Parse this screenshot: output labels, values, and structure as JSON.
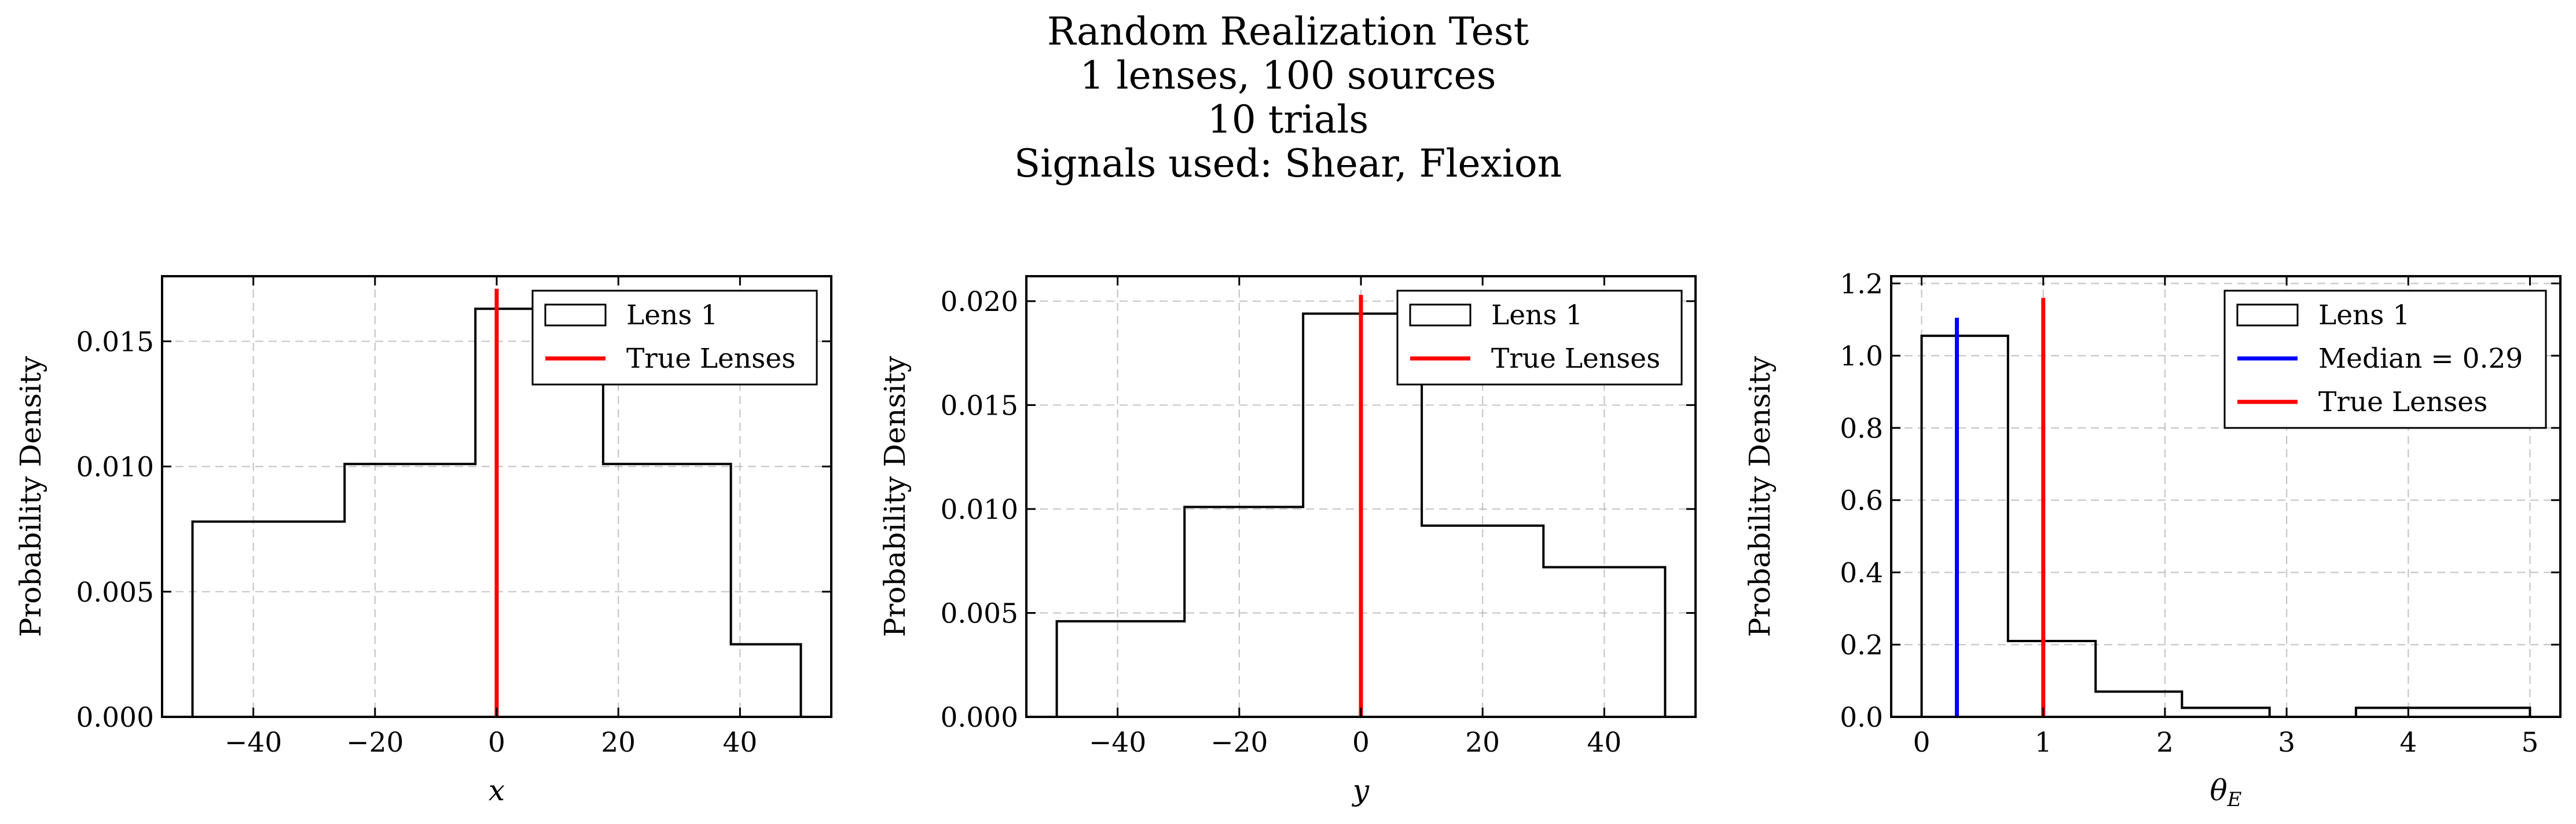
{
  "title_lines": [
    "Random Realization Test",
    "1 lenses, 100 sources",
    "10 trials",
    "Signals used: Shear, Flexion"
  ],
  "chart_data": [
    {
      "type": "histogram",
      "xlabel": "x",
      "ylabel": "Probability Density",
      "xlim": [
        -55,
        55
      ],
      "ylim": [
        0,
        0.0176
      ],
      "xticks": [
        -40,
        -20,
        0,
        20,
        40
      ],
      "xtick_labels": [
        "−40",
        "−20",
        "0",
        "20",
        "40"
      ],
      "yticks": [
        0,
        0.005,
        0.01,
        0.015
      ],
      "ytick_labels": [
        "0.000",
        "0.005",
        "0.010",
        "0.015"
      ],
      "grid": true,
      "legend_position": "top-right",
      "bins": [
        -50,
        -25,
        -3.5,
        17.5,
        38.5,
        50
      ],
      "density": [
        0.0078,
        0.0101,
        0.0163,
        0.0101,
        0.0029
      ],
      "legend": [
        {
          "label": "Lens 1",
          "kind": "box",
          "color": "#000000"
        },
        {
          "label": "True Lenses",
          "kind": "line",
          "color": "#ff0000"
        }
      ],
      "vlines": [
        {
          "x": 0,
          "ymax": 0.0171,
          "color": "#ff0000",
          "label": "True Lenses"
        }
      ]
    },
    {
      "type": "histogram",
      "xlabel": "y",
      "ylabel": "Probability Density",
      "xlim": [
        -55,
        55
      ],
      "ylim": [
        0,
        0.0212
      ],
      "xticks": [
        -40,
        -20,
        0,
        20,
        40
      ],
      "xtick_labels": [
        "−40",
        "−20",
        "0",
        "20",
        "40"
      ],
      "yticks": [
        0,
        0.005,
        0.01,
        0.015,
        0.02
      ],
      "ytick_labels": [
        "0.000",
        "0.005",
        "0.010",
        "0.015",
        "0.020"
      ],
      "grid": true,
      "legend_position": "top-right",
      "bins": [
        -50,
        -29,
        -9.5,
        10,
        30,
        50
      ],
      "density": [
        0.0046,
        0.0101,
        0.0194,
        0.0092,
        0.0072
      ],
      "legend": [
        {
          "label": "Lens 1",
          "kind": "box",
          "color": "#000000"
        },
        {
          "label": "True Lenses",
          "kind": "line",
          "color": "#ff0000"
        }
      ],
      "vlines": [
        {
          "x": 0,
          "ymax": 0.0203,
          "color": "#ff0000",
          "label": "True Lenses"
        }
      ]
    },
    {
      "type": "histogram",
      "xlabel": "θ_E",
      "ylabel": "Probability Density",
      "xlim": [
        -0.25,
        5.25
      ],
      "ylim": [
        0,
        1.22
      ],
      "xticks": [
        0,
        1,
        2,
        3,
        4,
        5
      ],
      "xtick_labels": [
        "0",
        "1",
        "2",
        "3",
        "4",
        "5"
      ],
      "yticks": [
        0,
        0.2,
        0.4,
        0.6,
        0.8,
        1.0,
        1.2
      ],
      "ytick_labels": [
        "0.0",
        "0.2",
        "0.4",
        "0.6",
        "0.8",
        "1.0",
        "1.2"
      ],
      "grid": true,
      "legend_position": "top-right",
      "bins": [
        0,
        0.71,
        1.43,
        2.14,
        2.86,
        3.57,
        4.29,
        5.0
      ],
      "density": [
        1.055,
        0.21,
        0.07,
        0.025,
        0.0,
        0.025,
        0.025
      ],
      "legend": [
        {
          "label": "Lens 1",
          "kind": "box",
          "color": "#000000"
        },
        {
          "label": "Median = 0.29",
          "kind": "line",
          "color": "#0000ff"
        },
        {
          "label": "True Lenses",
          "kind": "line",
          "color": "#ff0000"
        }
      ],
      "vlines": [
        {
          "x": 0.29,
          "ymax": 1.105,
          "color": "#0000ff",
          "label": "Median = 0.29"
        },
        {
          "x": 1.0,
          "ymax": 1.16,
          "color": "#ff0000",
          "label": "True Lenses"
        }
      ]
    }
  ]
}
